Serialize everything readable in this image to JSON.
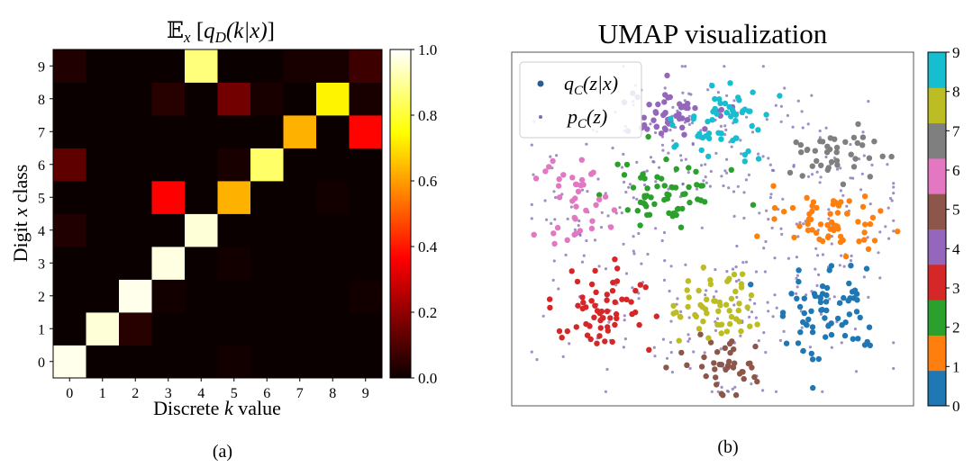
{
  "chart_data": [
    {
      "type": "heatmap",
      "panel_label": "(a)",
      "title_parts": {
        "e": "𝔼",
        "sub_x": "x",
        "open": " [",
        "q": "q",
        "sub_d": "D",
        "arg": "(k|x)",
        "close": "]"
      },
      "xlabel_parts": {
        "pre": "Discrete ",
        "k": "k",
        "post": " value"
      },
      "ylabel_parts": {
        "pre": "Digit ",
        "x": "x",
        "post": " class"
      },
      "x_categories": [
        "0",
        "1",
        "2",
        "3",
        "4",
        "5",
        "6",
        "7",
        "8",
        "9"
      ],
      "y_categories": [
        "0",
        "1",
        "2",
        "3",
        "4",
        "5",
        "6",
        "7",
        "8",
        "9"
      ],
      "colormap": "hot",
      "colorbar": {
        "ticks": [
          "0.0",
          "0.2",
          "0.4",
          "0.6",
          "0.8",
          "1.0"
        ],
        "range": [
          0,
          1
        ]
      },
      "values": [
        [
          0.98,
          0.0,
          0.0,
          0.0,
          0.0,
          0.01,
          0.0,
          0.0,
          0.0,
          0.0
        ],
        [
          0.0,
          0.96,
          0.04,
          0.0,
          0.0,
          0.0,
          0.0,
          0.0,
          0.0,
          0.0
        ],
        [
          0.0,
          0.0,
          0.98,
          0.01,
          0.0,
          0.0,
          0.0,
          0.0,
          0.0,
          0.01
        ],
        [
          0.0,
          0.0,
          0.0,
          0.97,
          0.0,
          0.01,
          0.0,
          0.0,
          0.0,
          0.0
        ],
        [
          0.03,
          0.0,
          0.0,
          0.0,
          0.96,
          0.0,
          0.0,
          0.0,
          0.0,
          0.0
        ],
        [
          0.0,
          0.0,
          0.0,
          0.35,
          0.0,
          0.63,
          0.0,
          0.0,
          0.01,
          0.0
        ],
        [
          0.12,
          0.0,
          0.0,
          0.0,
          0.0,
          0.02,
          0.85,
          0.0,
          0.0,
          0.0
        ],
        [
          0.0,
          0.0,
          0.0,
          0.0,
          0.0,
          0.0,
          0.0,
          0.63,
          0.0,
          0.37
        ],
        [
          0.0,
          0.0,
          0.0,
          0.04,
          0.0,
          0.15,
          0.02,
          0.0,
          0.73,
          0.02
        ],
        [
          0.03,
          0.0,
          0.0,
          0.0,
          0.87,
          0.0,
          0.0,
          0.02,
          0.02,
          0.07
        ]
      ]
    },
    {
      "type": "scatter",
      "panel_label": "(b)",
      "title": "UMAP visualization",
      "legend": {
        "placement": "top-left",
        "entries": [
          {
            "q": "q",
            "sub": "C",
            "arg": "(z|x)",
            "marker": "large dots colored by class"
          },
          {
            "q": "p",
            "sub": "C",
            "arg": "(z)",
            "marker": "small purple dots"
          }
        ]
      },
      "colorbar": {
        "ticks": [
          "0",
          "1",
          "2",
          "3",
          "4",
          "5",
          "6",
          "7",
          "8",
          "9"
        ],
        "range": [
          0,
          9
        ],
        "discrete": true
      },
      "class_colors": [
        "#1f77b4",
        "#ff7f0e",
        "#2ca02c",
        "#d62728",
        "#9467bd",
        "#8c564b",
        "#e377c2",
        "#7f7f7f",
        "#bcbd22",
        "#17becf"
      ],
      "prior_color": "#7e6bb0",
      "clusters": [
        {
          "class": 0,
          "center": [
            0.78,
            0.72
          ],
          "spread": [
            0.07,
            0.07
          ],
          "count": 70
        },
        {
          "class": 1,
          "center": [
            0.81,
            0.48
          ],
          "spread": [
            0.07,
            0.04
          ],
          "count": 60
        },
        {
          "class": 2,
          "center": [
            0.38,
            0.4
          ],
          "spread": [
            0.07,
            0.04
          ],
          "count": 60
        },
        {
          "class": 3,
          "center": [
            0.22,
            0.72
          ],
          "spread": [
            0.06,
            0.06
          ],
          "count": 60
        },
        {
          "class": 4,
          "center": [
            0.4,
            0.18
          ],
          "spread": [
            0.07,
            0.04
          ],
          "count": 50
        },
        {
          "class": 5,
          "center": [
            0.53,
            0.88
          ],
          "spread": [
            0.05,
            0.05
          ],
          "count": 40
        },
        {
          "class": 6,
          "center": [
            0.16,
            0.44
          ],
          "spread": [
            0.04,
            0.07
          ],
          "count": 40
        },
        {
          "class": 7,
          "center": [
            0.78,
            0.28
          ],
          "spread": [
            0.07,
            0.04
          ],
          "count": 40
        },
        {
          "class": 8,
          "center": [
            0.5,
            0.72
          ],
          "spread": [
            0.05,
            0.05
          ],
          "count": 55
        },
        {
          "class": 9,
          "center": [
            0.53,
            0.18
          ],
          "spread": [
            0.06,
            0.06
          ],
          "count": 55
        }
      ]
    }
  ]
}
